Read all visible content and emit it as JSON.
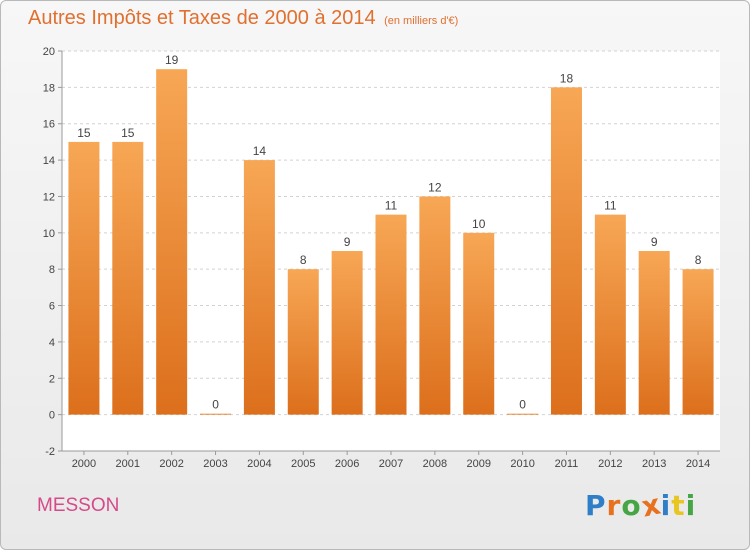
{
  "chart_data": {
    "type": "bar",
    "title": "Autres Impôts et Taxes de 2000 à 2014",
    "subtitle": "(en milliers d'€)",
    "categories": [
      "2000",
      "2001",
      "2002",
      "2003",
      "2004",
      "2005",
      "2006",
      "2007",
      "2008",
      "2009",
      "2010",
      "2011",
      "2012",
      "2013",
      "2014"
    ],
    "values": [
      15,
      15,
      19,
      0,
      14,
      8,
      9,
      11,
      12,
      10,
      0,
      18,
      11,
      9,
      8
    ],
    "ylim": [
      -2,
      20
    ],
    "yticks": [
      -2,
      0,
      2,
      4,
      6,
      8,
      10,
      12,
      14,
      16,
      18,
      20
    ],
    "grid": "horizontal-dashed",
    "bar_color": "#f0883a",
    "text_color": "#e07030"
  },
  "footer": {
    "commune": "MESSON",
    "logo_text": "Proxiti",
    "logo_colors": [
      "#2f7fc8",
      "#e8711f",
      "#46a545",
      "#e8711f",
      "#2f7fc8",
      "#e8c61f",
      "#46a545"
    ]
  }
}
